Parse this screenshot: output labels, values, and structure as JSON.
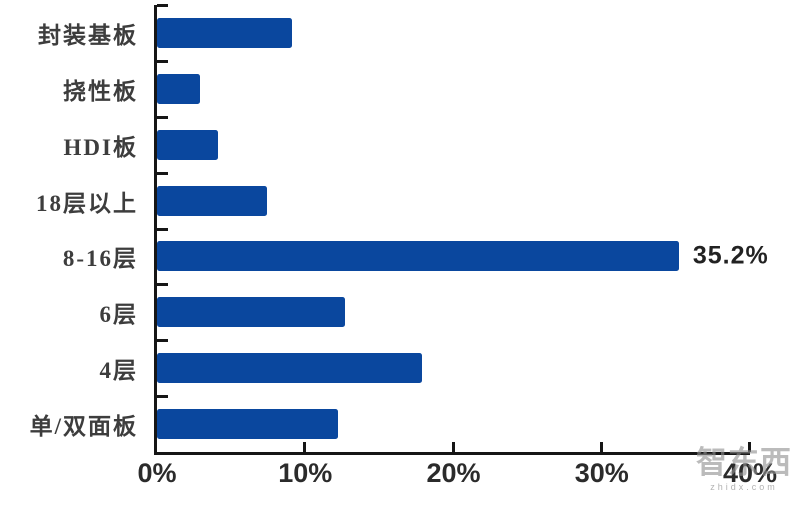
{
  "watermark": {
    "logo": "智东西",
    "domain": "zhidx.com"
  },
  "chart_data": {
    "type": "bar",
    "orientation": "horizontal",
    "title": "",
    "xlabel": "",
    "ylabel": "",
    "categories": [
      "封装基板",
      "挠性板",
      "HDI板",
      "18层以上",
      "8-16层",
      "6层",
      "4层",
      "单/双面板"
    ],
    "values": [
      9.1,
      2.9,
      4.1,
      7.4,
      35.2,
      12.7,
      17.9,
      12.2
    ],
    "data_labels": [
      null,
      null,
      null,
      null,
      "35.2%",
      null,
      null,
      null
    ],
    "x_ticks": [
      "0%",
      "10%",
      "20%",
      "30%",
      "40%"
    ],
    "xlim": [
      0,
      40
    ],
    "grid": false,
    "legend": false,
    "bar_color": "#0a479e",
    "axis_color": "#161616"
  }
}
